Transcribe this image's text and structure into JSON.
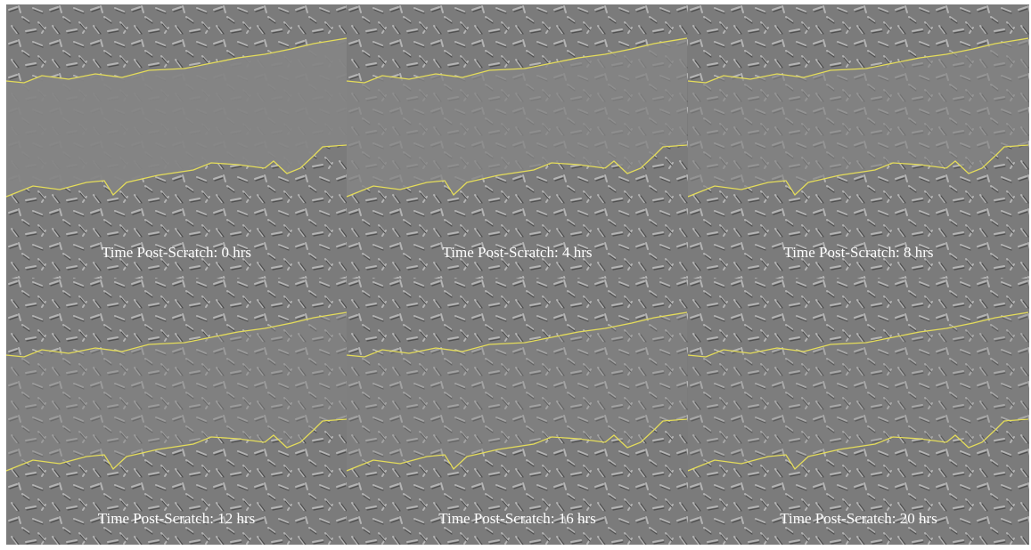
{
  "panels": [
    {
      "label": "Time Post-Scratch: 0 hrs"
    },
    {
      "label": "Time Post-Scratch: 4 hrs"
    },
    {
      "label": "Time Post-Scratch: 8 hrs"
    },
    {
      "label": "Time Post-Scratch: 12 hrs"
    },
    {
      "label": "Time Post-Scratch: 16 hrs"
    },
    {
      "label": "Time Post-Scratch: 20 hrs"
    }
  ]
}
